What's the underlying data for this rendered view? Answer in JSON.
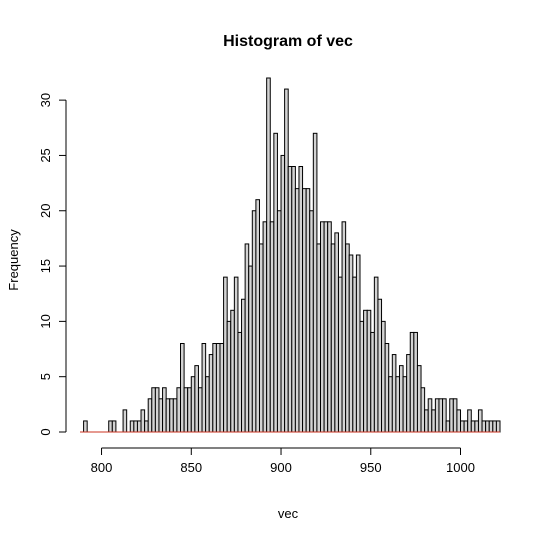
{
  "chart_data": {
    "type": "bar",
    "title": "Histogram of vec",
    "xlabel": "vec",
    "ylabel": "Frequency",
    "bin_width": 2,
    "xlim": [
      788,
      1022
    ],
    "ylim": [
      0,
      32
    ],
    "x_ticks": [
      800,
      850,
      900,
      950,
      1000
    ],
    "y_ticks": [
      0,
      5,
      10,
      15,
      20,
      25,
      30
    ],
    "baseline_color": "#cc3322",
    "bar_fill": "#d3d3d3",
    "bins": [
      [
        790,
        1
      ],
      [
        804,
        1
      ],
      [
        806,
        1
      ],
      [
        812,
        2
      ],
      [
        816,
        1
      ],
      [
        818,
        1
      ],
      [
        820,
        1
      ],
      [
        822,
        2
      ],
      [
        824,
        1
      ],
      [
        826,
        3
      ],
      [
        828,
        4
      ],
      [
        830,
        4
      ],
      [
        832,
        3
      ],
      [
        834,
        4
      ],
      [
        836,
        3
      ],
      [
        838,
        3
      ],
      [
        840,
        3
      ],
      [
        842,
        4
      ],
      [
        844,
        8
      ],
      [
        846,
        4
      ],
      [
        848,
        4
      ],
      [
        850,
        5
      ],
      [
        852,
        6
      ],
      [
        854,
        4
      ],
      [
        856,
        8
      ],
      [
        858,
        5
      ],
      [
        860,
        7
      ],
      [
        862,
        8
      ],
      [
        864,
        8
      ],
      [
        866,
        8
      ],
      [
        868,
        14
      ],
      [
        870,
        10
      ],
      [
        872,
        11
      ],
      [
        874,
        14
      ],
      [
        876,
        9
      ],
      [
        878,
        12
      ],
      [
        880,
        17
      ],
      [
        882,
        15
      ],
      [
        884,
        20
      ],
      [
        886,
        21
      ],
      [
        888,
        17
      ],
      [
        890,
        19
      ],
      [
        892,
        32
      ],
      [
        894,
        19
      ],
      [
        896,
        27
      ],
      [
        898,
        20
      ],
      [
        900,
        25
      ],
      [
        902,
        31
      ],
      [
        904,
        24
      ],
      [
        906,
        24
      ],
      [
        908,
        22
      ],
      [
        910,
        24
      ],
      [
        912,
        22
      ],
      [
        914,
        22
      ],
      [
        916,
        20
      ],
      [
        918,
        27
      ],
      [
        920,
        17
      ],
      [
        922,
        19
      ],
      [
        924,
        19
      ],
      [
        926,
        19
      ],
      [
        928,
        17
      ],
      [
        930,
        18
      ],
      [
        932,
        14
      ],
      [
        934,
        19
      ],
      [
        936,
        17
      ],
      [
        938,
        16
      ],
      [
        940,
        14
      ],
      [
        942,
        16
      ],
      [
        944,
        10
      ],
      [
        946,
        11
      ],
      [
        948,
        11
      ],
      [
        950,
        9
      ],
      [
        952,
        14
      ],
      [
        954,
        12
      ],
      [
        956,
        10
      ],
      [
        958,
        8
      ],
      [
        960,
        5
      ],
      [
        962,
        7
      ],
      [
        964,
        5
      ],
      [
        966,
        6
      ],
      [
        968,
        5
      ],
      [
        970,
        7
      ],
      [
        972,
        9
      ],
      [
        974,
        9
      ],
      [
        976,
        6
      ],
      [
        978,
        4
      ],
      [
        980,
        2
      ],
      [
        982,
        3
      ],
      [
        984,
        2
      ],
      [
        986,
        3
      ],
      [
        988,
        3
      ],
      [
        990,
        3
      ],
      [
        992,
        1
      ],
      [
        994,
        3
      ],
      [
        996,
        3
      ],
      [
        998,
        2
      ],
      [
        1000,
        1
      ],
      [
        1002,
        1
      ],
      [
        1004,
        2
      ],
      [
        1006,
        1
      ],
      [
        1008,
        1
      ],
      [
        1010,
        2
      ],
      [
        1012,
        1
      ],
      [
        1014,
        1
      ],
      [
        1016,
        1
      ],
      [
        1018,
        1
      ],
      [
        1020,
        1
      ]
    ]
  }
}
